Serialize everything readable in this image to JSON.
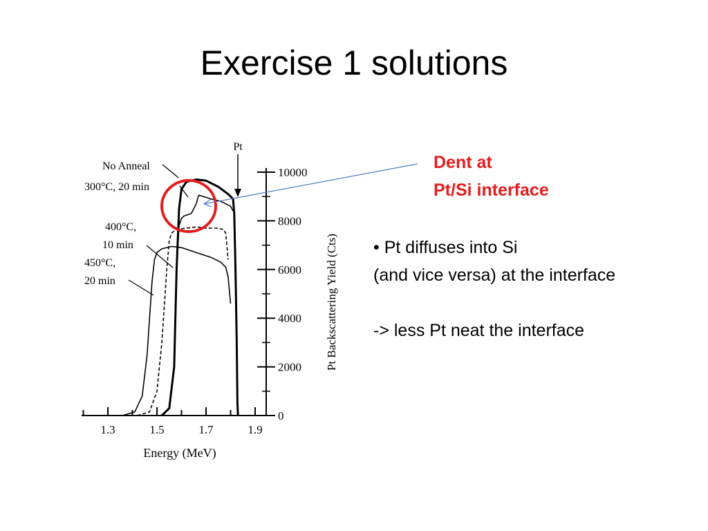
{
  "slide": {
    "title": "Exercise 1 solutions",
    "callout": {
      "line1": "Dent at",
      "line2": "Pt/Si interface",
      "color": "#e31d1d"
    },
    "notes": {
      "bullet_glyph": "•",
      "line1": "Pt diffuses into Si",
      "line2": "(and vice versa) at the interface",
      "line3": "-> less Pt neat the interface"
    },
    "colors": {
      "arrow": "#4a7ec0",
      "circle": "#e31d1d"
    }
  },
  "chart_data": {
    "type": "line",
    "xlabel": "Energy (MeV)",
    "ylabel": "Pt Backscattering Yield (Cts)",
    "xlim": [
      1.2,
      1.95
    ],
    "ylim": [
      0,
      10500
    ],
    "x_ticks": [
      1.3,
      1.5,
      1.7,
      1.9
    ],
    "x_tick_labels": [
      "1.3",
      "1.5",
      "1.7",
      "1.9"
    ],
    "y_ticks": [
      0,
      2000,
      4000,
      6000,
      8000,
      10000
    ],
    "y_tick_labels": [
      "0",
      "2000",
      "4000",
      "6000",
      "8000",
      "10000"
    ],
    "marker": {
      "label": "Pt",
      "x": 1.82
    },
    "labels": [
      {
        "text": "No Anneal",
        "series": "No Anneal"
      },
      {
        "text": "300°C, 20 min",
        "series": "300°C, 20 min"
      },
      {
        "text": "400°C,",
        "text2": "10 min",
        "series": "400°C, 10 min"
      },
      {
        "text": "450°C,",
        "text2": "20 min",
        "series": "450°C, 20 min"
      }
    ],
    "series": [
      {
        "name": "No Anneal",
        "style": "solid-bold",
        "x": [
          1.52,
          1.55,
          1.57,
          1.58,
          1.59,
          1.6,
          1.62,
          1.66,
          1.7,
          1.75,
          1.79,
          1.81,
          1.815,
          1.82,
          1.825,
          1.828,
          1.83
        ],
        "y": [
          0,
          300,
          2000,
          6000,
          8500,
          9300,
          9600,
          9700,
          9650,
          9400,
          9100,
          8900,
          8300,
          6000,
          3000,
          500,
          0
        ]
      },
      {
        "name": "300°C, 20 min",
        "style": "solid",
        "x": [
          1.52,
          1.55,
          1.57,
          1.58,
          1.59,
          1.6,
          1.61,
          1.64,
          1.66,
          1.67,
          1.69,
          1.72,
          1.76,
          1.8,
          1.81
        ],
        "y": [
          0,
          300,
          2000,
          6000,
          7800,
          8100,
          8200,
          8300,
          8700,
          9050,
          9000,
          8900,
          8800,
          8600,
          8400
        ]
      },
      {
        "name": "400°C, 10 min",
        "style": "dashed",
        "x": [
          1.42,
          1.47,
          1.5,
          1.52,
          1.54,
          1.55,
          1.56,
          1.58,
          1.62,
          1.66,
          1.7,
          1.74,
          1.77,
          1.78,
          1.785,
          1.79
        ],
        "y": [
          0,
          150,
          1000,
          3000,
          6000,
          7200,
          7500,
          7650,
          7700,
          7750,
          7700,
          7700,
          7650,
          7500,
          7000,
          6400
        ]
      },
      {
        "name": "450°C, 20 min",
        "style": "solid",
        "x": [
          1.36,
          1.41,
          1.44,
          1.46,
          1.47,
          1.48,
          1.49,
          1.5,
          1.52,
          1.56,
          1.6,
          1.66,
          1.72,
          1.76,
          1.78,
          1.79,
          1.8
        ],
        "y": [
          0,
          150,
          800,
          2500,
          4000,
          5500,
          6400,
          6700,
          6850,
          6950,
          6900,
          6700,
          6500,
          6300,
          6100,
          5700,
          4600
        ]
      }
    ]
  }
}
